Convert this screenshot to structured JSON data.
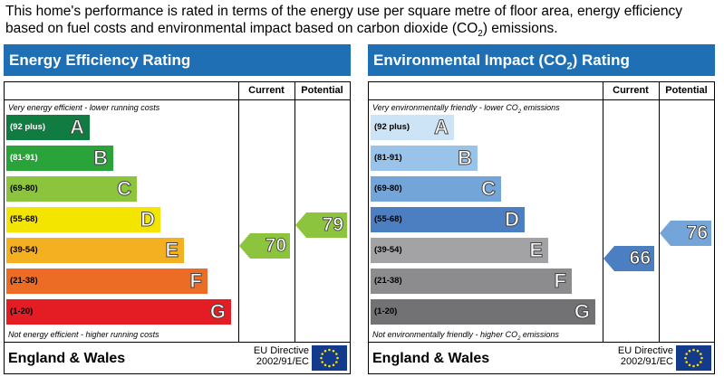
{
  "intro": {
    "line1": "This home's performance is rated in terms of the energy use per square metre of floor area, energy efficiency",
    "line2_pre": "based on fuel costs and environmental impact based on carbon dioxide (CO",
    "line2_sub": "2",
    "line2_post": ") emissions."
  },
  "energy": {
    "title": "Energy Efficiency Rating",
    "col_current": "Current",
    "col_potential": "Potential",
    "top_note": "Very energy efficient - lower running costs",
    "bottom_note": "Not energy efficient - higher running costs",
    "bands": [
      {
        "range": "(92 plus)",
        "letter": "A",
        "color": "#107c41"
      },
      {
        "range": "(81-91)",
        "letter": "B",
        "color": "#2aa33a"
      },
      {
        "range": "(69-80)",
        "letter": "C",
        "color": "#8cc43d"
      },
      {
        "range": "(55-68)",
        "letter": "D",
        "color": "#f3e500"
      },
      {
        "range": "(39-54)",
        "letter": "E",
        "color": "#f5b021"
      },
      {
        "range": "(21-38)",
        "letter": "F",
        "color": "#ec6b25"
      },
      {
        "range": "(1-20)",
        "letter": "G",
        "color": "#e31d23"
      }
    ],
    "current": {
      "value": "70",
      "color": "#8cc43d"
    },
    "potential": {
      "value": "79",
      "color": "#8cc43d"
    },
    "region": "England & Wales",
    "directive_line1": "EU Directive",
    "directive_line2": "2002/91/EC"
  },
  "environment": {
    "title_pre": "Environmental Impact (CO",
    "title_sub": "2",
    "title_post": ") Rating",
    "col_current": "Current",
    "col_potential": "Potential",
    "top_note_pre": "Very environmentally friendly - lower CO",
    "top_note_sub": "2",
    "top_note_post": " emissions",
    "bottom_note_pre": "Not environmentally friendly - higher CO",
    "bottom_note_sub": "2",
    "bottom_note_post": " emissions",
    "bands": [
      {
        "range": "(92 plus)",
        "letter": "A",
        "color": "#cde4f6"
      },
      {
        "range": "(81-91)",
        "letter": "B",
        "color": "#9ac3e9"
      },
      {
        "range": "(69-80)",
        "letter": "C",
        "color": "#73a5d8"
      },
      {
        "range": "(55-68)",
        "letter": "D",
        "color": "#4b7fc1"
      },
      {
        "range": "(39-54)",
        "letter": "E",
        "color": "#a3a3a5"
      },
      {
        "range": "(21-38)",
        "letter": "F",
        "color": "#8c8c8e"
      },
      {
        "range": "(1-20)",
        "letter": "G",
        "color": "#727274"
      }
    ],
    "current": {
      "value": "66",
      "color": "#4b7fc1"
    },
    "potential": {
      "value": "76",
      "color": "#73a5d8"
    },
    "region": "England & Wales",
    "directive_line1": "EU Directive",
    "directive_line2": "2002/91/EC"
  }
}
